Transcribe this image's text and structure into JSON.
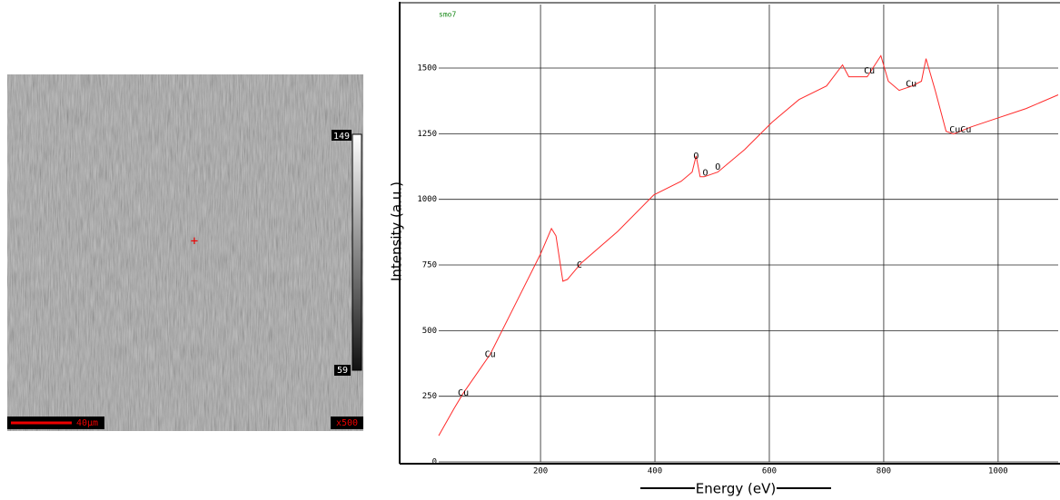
{
  "image": {
    "colorbar_max": 149,
    "colorbar_min": 59,
    "scale_bar": "40µm",
    "magnification": "x500"
  },
  "chart_data": {
    "type": "line",
    "tag": "smo7",
    "x_label": "Energy (eV)",
    "y_label": "Intensity (a.u.)",
    "xlim": [
      22,
      1105
    ],
    "ylim": [
      0,
      1742
    ],
    "xticks": [
      200,
      400,
      600,
      800,
      1000
    ],
    "yticks": [
      0,
      250,
      500,
      750,
      1000,
      1250,
      1500
    ],
    "grid": true,
    "series": [
      {
        "color": "#ff2a2a",
        "x": [
          22,
          49,
          65,
          112,
          160,
          200,
          219,
          227,
          239,
          247,
          271,
          335,
          398,
          446,
          465,
          472,
          479,
          486,
          510,
          557,
          605,
          652,
          700,
          728,
          739,
          771,
          795,
          808,
          827,
          850,
          866,
          874,
          890,
          909,
          922,
          953,
          1001,
          1049,
          1105
        ],
        "values": [
          100,
          204,
          262,
          410,
          618,
          792,
          889,
          861,
          688,
          695,
          757,
          878,
          1017,
          1069,
          1104,
          1165,
          1086,
          1086,
          1104,
          1190,
          1294,
          1380,
          1432,
          1512,
          1467,
          1467,
          1547,
          1450,
          1415,
          1432,
          1450,
          1536,
          1415,
          1259,
          1249,
          1276,
          1311,
          1346,
          1398
        ]
      }
    ],
    "annotations": [
      {
        "text": "Cu",
        "x": 65,
        "y": 262
      },
      {
        "text": "Cu",
        "x": 112,
        "y": 410
      },
      {
        "text": "C",
        "x": 268,
        "y": 750
      },
      {
        "text": "O",
        "x": 472,
        "y": 1165
      },
      {
        "text": "O",
        "x": 488,
        "y": 1100
      },
      {
        "text": "O",
        "x": 510,
        "y": 1124
      },
      {
        "text": "Cu",
        "x": 775,
        "y": 1490
      },
      {
        "text": "Cu",
        "x": 848,
        "y": 1440
      },
      {
        "text": "CuCu",
        "x": 934,
        "y": 1265
      }
    ]
  }
}
